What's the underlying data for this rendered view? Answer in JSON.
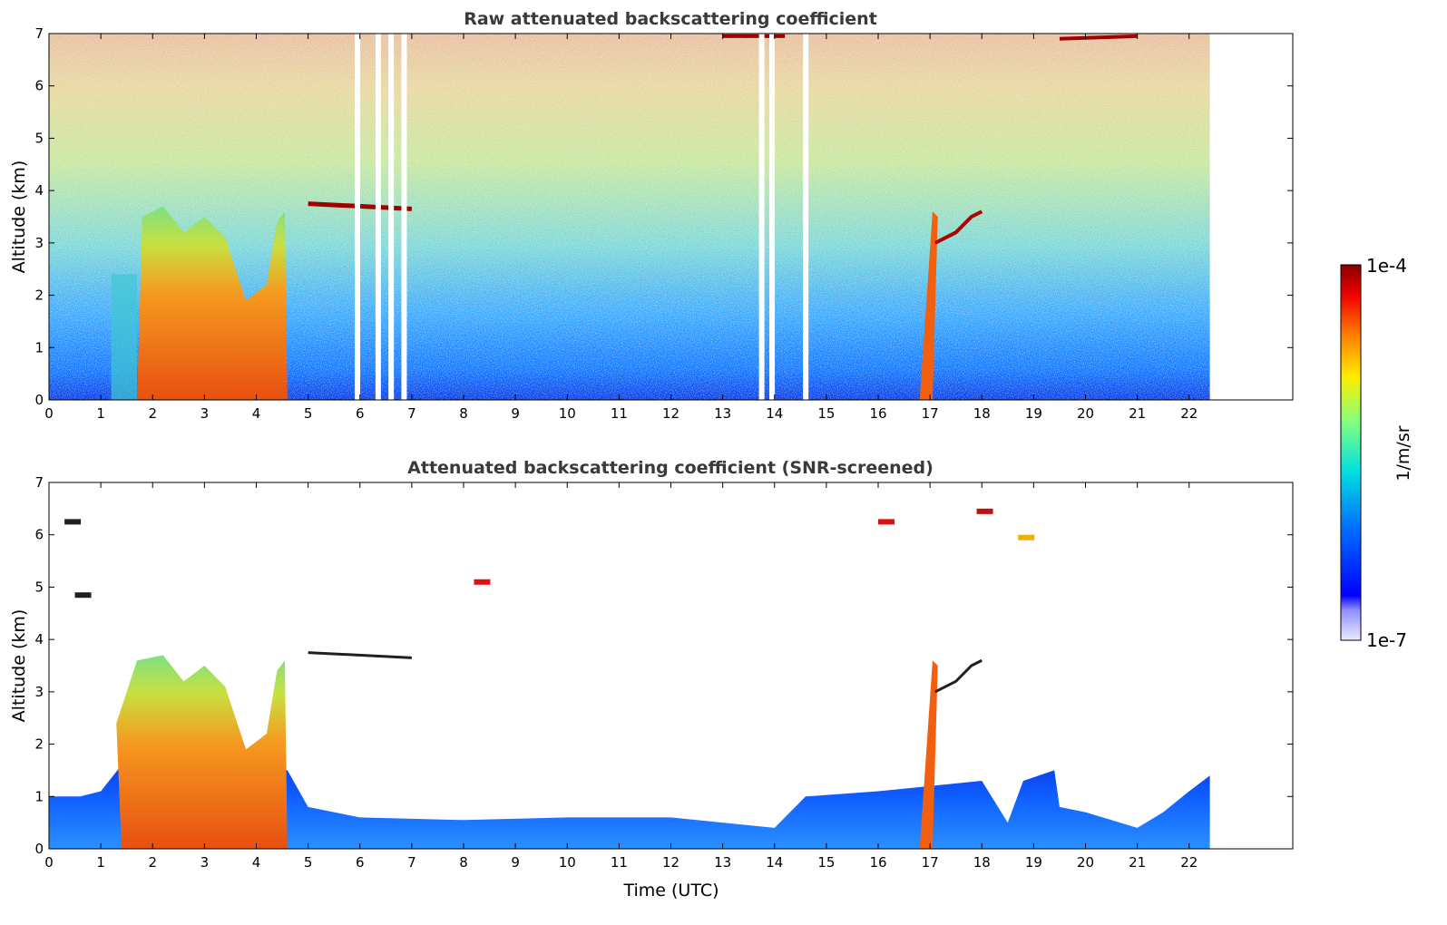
{
  "chart_data": [
    {
      "type": "heatmap",
      "title": "Raw attenuated backscattering coefficient",
      "xlabel": "",
      "ylabel": "Altitude (km)",
      "xlim": [
        0,
        24
      ],
      "ylim": [
        0,
        7
      ],
      "xticks": [
        0,
        1,
        2,
        3,
        4,
        5,
        6,
        7,
        8,
        9,
        10,
        11,
        12,
        13,
        14,
        15,
        16,
        17,
        18,
        19,
        20,
        21,
        22
      ],
      "yticks": [
        0,
        1,
        2,
        3,
        4,
        5,
        6,
        7
      ],
      "data_extent_x": [
        0,
        22.4
      ],
      "grid": false,
      "features": [
        {
          "t0": 1.7,
          "t1": 4.5,
          "z0": 0,
          "z1": 3.5,
          "level": "high"
        },
        {
          "t0": 16.8,
          "t1": 17.1,
          "z0": 0,
          "z1": 3.7,
          "level": "high"
        },
        {
          "t0": 5.0,
          "t1": 7.0,
          "z0": 3.6,
          "z1": 3.8,
          "level": "very-high"
        }
      ]
    },
    {
      "type": "heatmap",
      "title": "Attenuated backscattering coefficient (SNR-screened)",
      "xlabel": "Time (UTC)",
      "ylabel": "Altitude (km)",
      "xlim": [
        0,
        24
      ],
      "ylim": [
        0,
        7
      ],
      "xticks": [
        0,
        1,
        2,
        3,
        4,
        5,
        6,
        7,
        8,
        9,
        10,
        11,
        12,
        13,
        14,
        15,
        16,
        17,
        18,
        19,
        20,
        21,
        22
      ],
      "yticks": [
        0,
        1,
        2,
        3,
        4,
        5,
        6,
        7
      ],
      "data_extent_x": [
        0,
        22.4
      ],
      "grid": false,
      "boundary_layer_top": [
        [
          0,
          1.0
        ],
        [
          0.6,
          1.0
        ],
        [
          1.0,
          1.1
        ],
        [
          1.4,
          1.6
        ],
        [
          4.6,
          1.5
        ],
        [
          5.0,
          0.8
        ],
        [
          6.0,
          0.6
        ],
        [
          8.0,
          0.55
        ],
        [
          10.0,
          0.6
        ],
        [
          12.0,
          0.6
        ],
        [
          13.0,
          0.5
        ],
        [
          14.0,
          0.4
        ],
        [
          14.6,
          1.0
        ],
        [
          16.0,
          1.1
        ],
        [
          17.0,
          1.2
        ],
        [
          18.0,
          1.3
        ],
        [
          18.5,
          0.5
        ],
        [
          18.8,
          1.3
        ],
        [
          19.4,
          1.5
        ],
        [
          19.5,
          0.8
        ],
        [
          20.0,
          0.7
        ],
        [
          21.0,
          0.4
        ],
        [
          21.5,
          0.7
        ],
        [
          22.0,
          1.1
        ],
        [
          22.4,
          1.4
        ]
      ]
    }
  ],
  "colorbar": {
    "label": "1/m/sr",
    "min_label": "1e-7",
    "max_label": "1e-4",
    "scale": "log",
    "range": [
      1e-07,
      0.0001
    ],
    "colormap": "jet"
  }
}
